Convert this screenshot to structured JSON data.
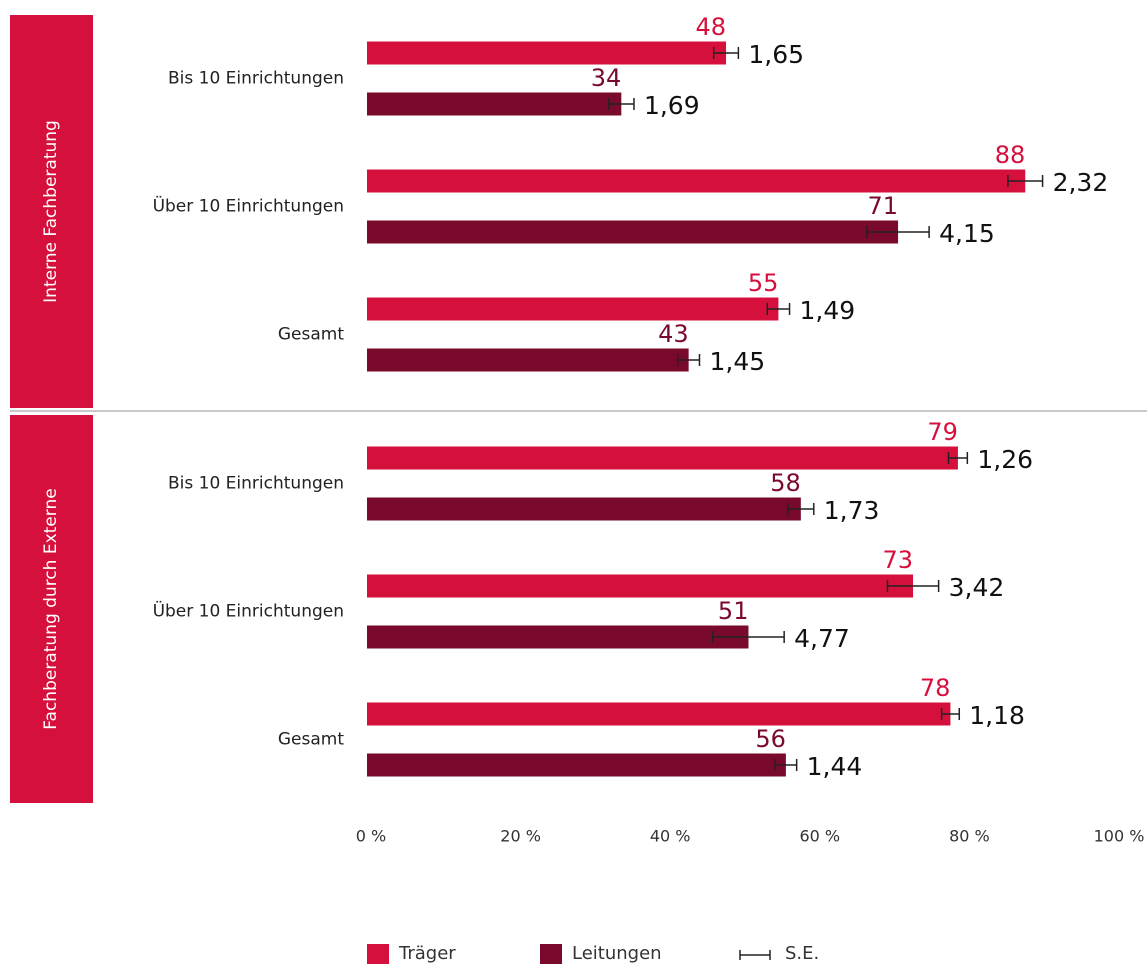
{
  "chart_data": {
    "type": "bar",
    "orientation": "horizontal",
    "groups": [
      {
        "label": "Interne Fachberatung",
        "categories": [
          "Bis 10 Einrichtungen",
          "Über 10 Einrichtungen",
          "Gesamt"
        ]
      },
      {
        "label": "Fachberatung durch Externe",
        "categories": [
          "Bis 10 Einrichtungen",
          "Über 10 Einrichtungen",
          "Gesamt"
        ]
      }
    ],
    "series": [
      {
        "name": "Träger",
        "color": "#d5103c",
        "values": [
          48,
          88,
          55,
          79,
          73,
          78
        ],
        "errors": [
          1.65,
          2.32,
          1.49,
          1.26,
          3.42,
          1.18
        ],
        "error_labels": [
          "1,65",
          "2,32",
          "1,49",
          "1,26",
          "3,42",
          "1,18"
        ]
      },
      {
        "name": "Leitungen",
        "color": "#7a0a2b",
        "values": [
          34,
          71,
          43,
          58,
          51,
          56
        ],
        "errors": [
          1.69,
          4.15,
          1.45,
          1.73,
          4.77,
          1.44
        ],
        "error_labels": [
          "1,69",
          "4,15",
          "1,45",
          "1,73",
          "4,77",
          "1,44"
        ]
      }
    ],
    "error_legend": "S.E.",
    "xlim": [
      0,
      100
    ],
    "xticks": [
      {
        "value": 0,
        "label": "0 %"
      },
      {
        "value": 20,
        "label": "20 %"
      },
      {
        "value": 40,
        "label": "40 %"
      },
      {
        "value": 60,
        "label": "60 %"
      },
      {
        "value": 80,
        "label": "80 %"
      },
      {
        "value": 100,
        "label": "100 %"
      }
    ],
    "legend": "bottom"
  }
}
